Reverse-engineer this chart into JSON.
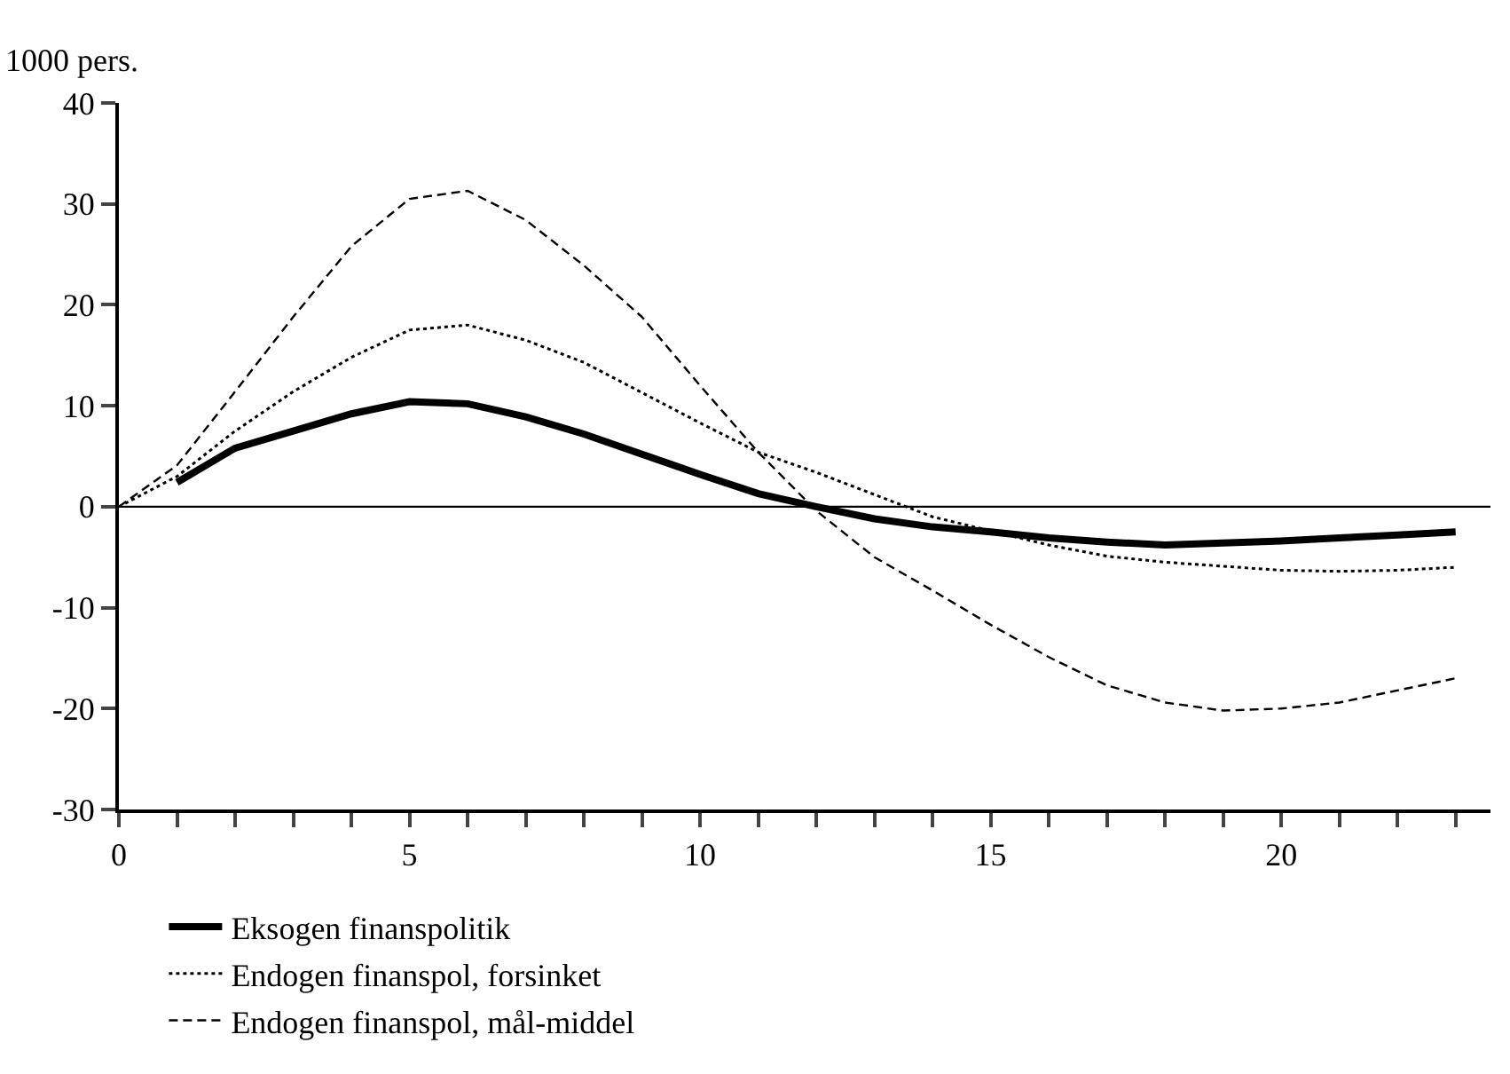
{
  "chart_data": {
    "type": "line",
    "ylabel": "1000 pers.",
    "x": [
      0,
      1,
      2,
      3,
      4,
      5,
      6,
      7,
      8,
      9,
      10,
      11,
      12,
      13,
      14,
      15,
      16,
      17,
      18,
      19,
      20,
      21,
      22,
      23
    ],
    "series": [
      {
        "name": "Eksogen finanspolitik",
        "color": "#000000",
        "line_style": "solid",
        "values": [
          null,
          2.4,
          5.8,
          7.5,
          9.2,
          10.4,
          10.2,
          8.9,
          7.2,
          5.2,
          3.2,
          1.3,
          0,
          -1.2,
          -2.0,
          -2.5,
          -3.1,
          -3.5,
          -3.8,
          -3.6,
          -3.4,
          -3.1,
          -2.8,
          -2.5
        ]
      },
      {
        "name": "Endogen finanspol, forsinket",
        "color": "#000000",
        "line_style": "dotted",
        "values": [
          0,
          3,
          7.5,
          11.4,
          14.8,
          17.5,
          18.0,
          16.5,
          14.3,
          11.3,
          8.3,
          5.4,
          3.4,
          1.2,
          -1.0,
          -2.4,
          -3.8,
          -4.9,
          -5.5,
          -5.9,
          -6.3,
          -6.4,
          -6.3,
          -6.0
        ]
      },
      {
        "name": "Endogen finanspol, mål-middel",
        "color": "#000000",
        "line_style": "dashed",
        "values": [
          0,
          4.1,
          11.4,
          18.8,
          25.8,
          30.5,
          31.3,
          28.4,
          23.9,
          18.8,
          12,
          5.4,
          -0.4,
          -5.0,
          -8.3,
          -11.7,
          -14.9,
          -17.7,
          -19.4,
          -20.2,
          -20.0,
          -19.4,
          -18.2,
          -17.0
        ]
      }
    ],
    "xlim": [
      0,
      23.6
    ],
    "xticks": [
      0,
      {
        "value": 1,
        "label": null
      },
      {
        "value": 2,
        "label": null
      },
      {
        "value": 3,
        "label": null
      },
      {
        "value": 4,
        "label": null
      },
      5,
      {
        "value": 6,
        "label": null
      },
      {
        "value": 7,
        "label": null
      },
      {
        "value": 8,
        "label": null
      },
      {
        "value": 9,
        "label": null
      },
      10,
      {
        "value": 11,
        "label": null
      },
      {
        "value": 12,
        "label": null
      },
      {
        "value": 13,
        "label": null
      },
      {
        "value": 14,
        "label": null
      },
      15,
      {
        "value": 16,
        "label": null
      },
      {
        "value": 17,
        "label": null
      },
      {
        "value": 18,
        "label": null
      },
      {
        "value": 19,
        "label": null
      },
      20,
      {
        "value": 21,
        "label": null
      },
      {
        "value": 22,
        "label": null
      },
      {
        "value": 23,
        "label": null
      }
    ],
    "ylim": [
      -30,
      40
    ],
    "yticks": [
      -30,
      -20,
      -10,
      0,
      10,
      20,
      30,
      40
    ],
    "ref_lines": [
      {
        "axis": "y",
        "value": 0,
        "color": "#000000"
      }
    ],
    "grid": false,
    "legend": "bottom left",
    "marker": "none"
  }
}
